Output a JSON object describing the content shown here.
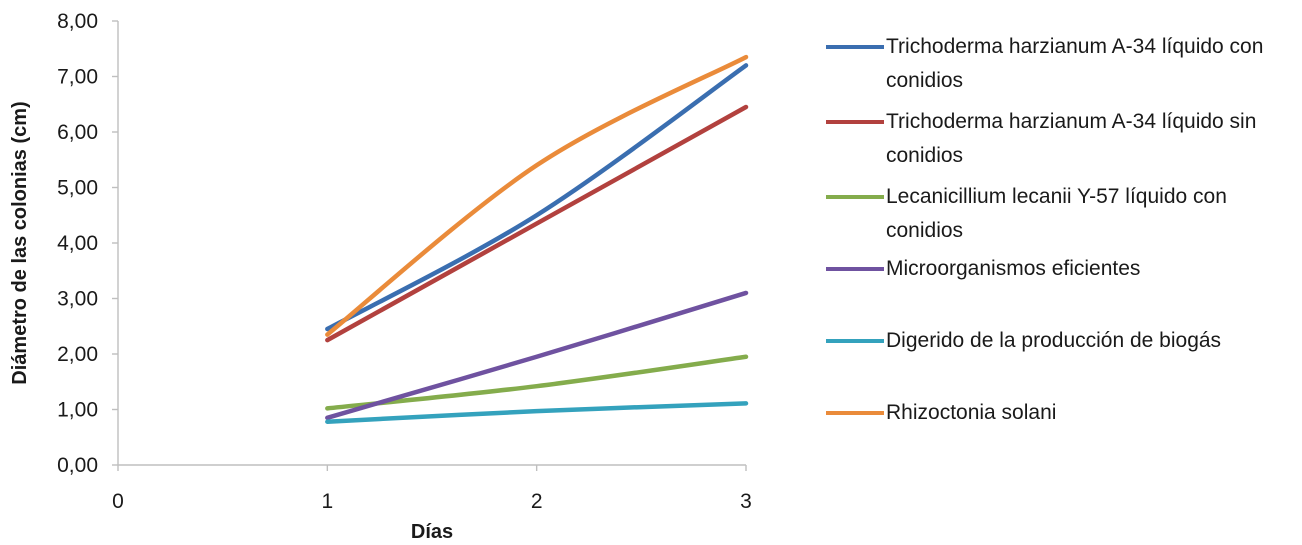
{
  "chart_data": {
    "type": "line",
    "title": "",
    "xlabel": "Días",
    "ylabel": "Diámetro de las colonias (cm)",
    "x_ticks": [
      "0",
      "1",
      "2",
      "3"
    ],
    "y_ticks": [
      "0,00",
      "1,00",
      "2,00",
      "3,00",
      "4,00",
      "5,00",
      "6,00",
      "7,00",
      "8,00"
    ],
    "xlim": [
      0,
      3
    ],
    "ylim": [
      0,
      8
    ],
    "grid": false,
    "legend_position": "right",
    "x": [
      1,
      2,
      3
    ],
    "series": [
      {
        "name": "Trichoderma harzianum A-34 líquido con conidios",
        "values": [
          2.45,
          4.5,
          7.2
        ],
        "color": "#3a6eb0"
      },
      {
        "name": "Trichoderma harzianum A-34 líquido sin conidios",
        "values": [
          2.25,
          4.35,
          6.45
        ],
        "color": "#b2413e"
      },
      {
        "name": "Lecanicillium lecanii Y-57 líquido con conidios",
        "values": [
          1.02,
          1.42,
          1.95
        ],
        "color": "#84ac4c"
      },
      {
        "name": "Microorganismos eficientes",
        "values": [
          0.85,
          1.95,
          3.1
        ],
        "color": "#6f52a0"
      },
      {
        "name": "Digerido de la producción de biogás",
        "values": [
          0.78,
          0.97,
          1.11
        ],
        "color": "#34a2bd"
      },
      {
        "name": "Rhizoctonia solani",
        "values": [
          2.35,
          5.4,
          7.35
        ],
        "color": "#ea8b3a"
      }
    ]
  }
}
